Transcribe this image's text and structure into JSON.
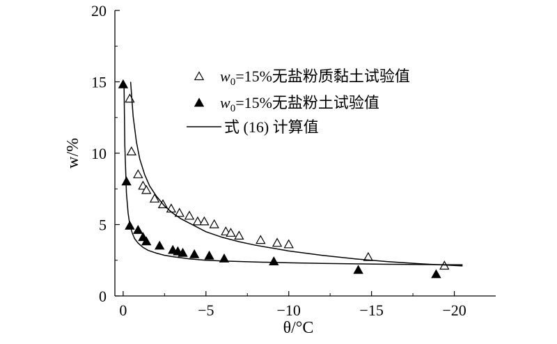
{
  "chart_data": {
    "type": "scatter",
    "xlabel": "θ/°C",
    "ylabel": "w/%",
    "xlim": [
      0.5,
      -22.5
    ],
    "ylim": [
      0,
      20
    ],
    "x_ticks": [
      0,
      -5,
      -10,
      -15,
      -20
    ],
    "x_tick_labels": [
      "0",
      "−5",
      "−10",
      "−15",
      "−20"
    ],
    "y_ticks": [
      0,
      5,
      10,
      15,
      20
    ],
    "y_tick_labels": [
      "0",
      "5",
      "10",
      "15",
      "20"
    ],
    "grid": false,
    "legend_position": "top-right",
    "legend": {
      "entry1_sym": "w",
      "entry1_sub": "0",
      "entry1_rest": "=15%无盐粉质黏土试验值",
      "entry2_sym": "w",
      "entry2_sub": "0",
      "entry2_rest": "=15%无盐粉土试验值",
      "entry3": "式 (16) 计算值"
    },
    "series": [
      {
        "marker": "open-triangle",
        "x": [
          -0.4,
          -0.5,
          -0.9,
          -1.2,
          -1.4,
          -1.9,
          -2.4,
          -2.9,
          -3.4,
          -4.0,
          -4.5,
          -4.9,
          -5.5,
          -6.2,
          -6.5,
          -7.0,
          -8.3,
          -9.3,
          -10.0,
          -14.8,
          -19.4
        ],
        "y": [
          13.8,
          10.1,
          8.5,
          7.7,
          7.4,
          6.8,
          6.4,
          6.1,
          5.8,
          5.6,
          5.2,
          5.2,
          5.0,
          4.5,
          4.4,
          4.2,
          3.9,
          3.7,
          3.6,
          2.7,
          2.1
        ]
      },
      {
        "marker": "filled-triangle",
        "x": [
          0.0,
          -0.2,
          -0.4,
          -0.9,
          -1.2,
          -1.4,
          -2.2,
          -3.0,
          -3.3,
          -3.6,
          -4.3,
          -5.2,
          -6.1,
          -9.1,
          -14.2,
          -18.9
        ],
        "y": [
          14.8,
          8.0,
          4.9,
          4.6,
          4.1,
          3.8,
          3.5,
          3.2,
          3.1,
          3.0,
          2.9,
          2.8,
          2.6,
          2.4,
          1.8,
          1.5
        ]
      },
      {
        "marker": "line",
        "x": [
          -0.45,
          -0.6,
          -0.8,
          -1.0,
          -1.3,
          -1.6,
          -2.0,
          -2.5,
          -3.0,
          -3.5,
          -4.0,
          -5.0,
          -6.0,
          -7.0,
          -8.0,
          -9.0,
          -10.0,
          -12.0,
          -14.0,
          -16.0,
          -18.0,
          -20.5
        ],
        "y": [
          15.0,
          12.6,
          10.8,
          9.6,
          8.5,
          7.7,
          7.0,
          6.3,
          5.8,
          5.4,
          5.1,
          4.5,
          4.1,
          3.8,
          3.55,
          3.35,
          3.15,
          2.85,
          2.6,
          2.4,
          2.25,
          2.1
        ]
      },
      {
        "marker": "line",
        "x": [
          -0.05,
          -0.1,
          -0.2,
          -0.3,
          -0.4,
          -0.55,
          -0.7,
          -0.9,
          -1.2,
          -1.5,
          -2.0,
          -2.5,
          -3.0,
          -4.0,
          -5.0,
          -6.0,
          -8.0,
          -10.0,
          -12.0,
          -14.0,
          -16.0,
          -18.0,
          -20.5
        ],
        "y": [
          15.0,
          10.5,
          7.2,
          5.8,
          5.0,
          4.4,
          4.0,
          3.7,
          3.4,
          3.2,
          3.0,
          2.85,
          2.75,
          2.6,
          2.5,
          2.45,
          2.38,
          2.32,
          2.28,
          2.25,
          2.22,
          2.2,
          2.18
        ]
      }
    ]
  }
}
